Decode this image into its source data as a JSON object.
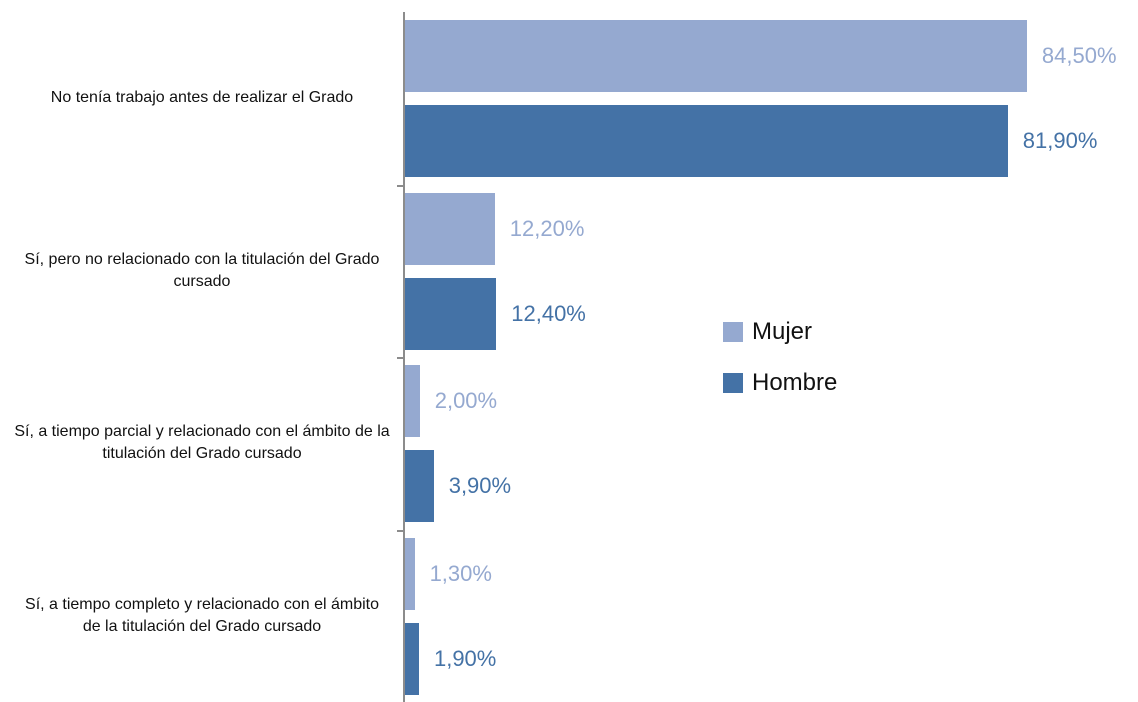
{
  "chart_data": {
    "type": "bar",
    "orientation": "horizontal",
    "categories": [
      "No tenía trabajo antes de realizar el Grado",
      "Sí, pero no relacionado con la titulación del Grado cursado",
      "Sí, a tiempo parcial y relacionado con el ámbito de la titulación del Grado cursado",
      "Sí, a tiempo completo y relacionado con el ámbito de la titulación del Grado cursado"
    ],
    "series": [
      {
        "name": "Mujer",
        "color": "#95a9d0",
        "values": [
          84.5,
          12.2,
          2.0,
          1.3
        ],
        "value_labels": [
          "84,50%",
          "12,20%",
          "2,00%",
          "1,30%"
        ]
      },
      {
        "name": "Hombre",
        "color": "#4472a6",
        "values": [
          81.9,
          12.4,
          3.9,
          1.9
        ],
        "value_labels": [
          "81,90%",
          "12,40%",
          "3,90%",
          "1,90%"
        ]
      }
    ],
    "legend": "right"
  }
}
